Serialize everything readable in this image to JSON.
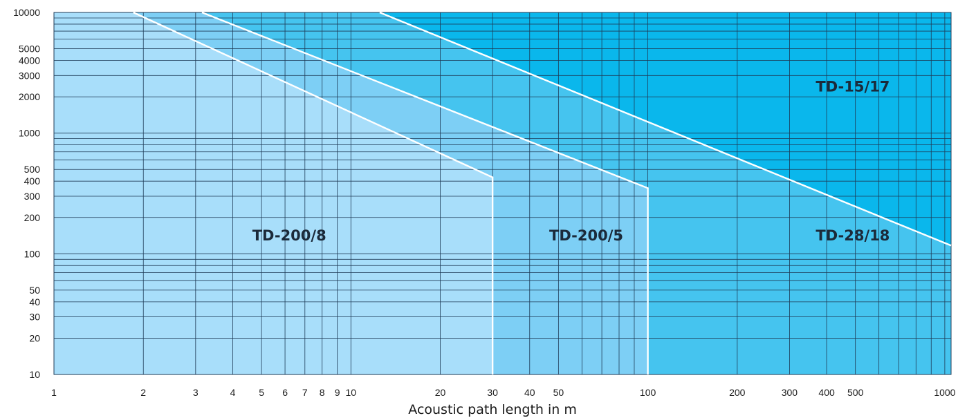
{
  "chart_data": {
    "type": "area",
    "xlabel": "Acoustic path length in m",
    "ylabel": "",
    "x_scale": "log",
    "y_scale": "log",
    "xlim": [
      1,
      1050
    ],
    "ylim": [
      10,
      10000
    ],
    "x_ticks": [
      {
        "v": 1,
        "label": "1"
      },
      {
        "v": 2,
        "label": "2"
      },
      {
        "v": 3,
        "label": "3"
      },
      {
        "v": 4,
        "label": "4"
      },
      {
        "v": 5,
        "label": "5"
      },
      {
        "v": 6,
        "label": "6"
      },
      {
        "v": 7,
        "label": "7"
      },
      {
        "v": 8,
        "label": "8"
      },
      {
        "v": 9,
        "label": "9"
      },
      {
        "v": 10,
        "label": "10"
      },
      {
        "v": 20,
        "label": "20"
      },
      {
        "v": 30,
        "label": "30"
      },
      {
        "v": 40,
        "label": "40"
      },
      {
        "v": 50,
        "label": "50"
      },
      {
        "v": 100,
        "label": "100"
      },
      {
        "v": 200,
        "label": "200"
      },
      {
        "v": 300,
        "label": "300"
      },
      {
        "v": 400,
        "label": "400"
      },
      {
        "v": 500,
        "label": "500"
      },
      {
        "v": 1000,
        "label": "1000"
      }
    ],
    "y_ticks": [
      {
        "v": 10,
        "label": "10"
      },
      {
        "v": 20,
        "label": "20"
      },
      {
        "v": 30,
        "label": "30"
      },
      {
        "v": 40,
        "label": "40"
      },
      {
        "v": 50,
        "label": "50"
      },
      {
        "v": 100,
        "label": "100"
      },
      {
        "v": 200,
        "label": "200"
      },
      {
        "v": 300,
        "label": "300"
      },
      {
        "v": 400,
        "label": "400"
      },
      {
        "v": 500,
        "label": "500"
      },
      {
        "v": 1000,
        "label": "1000"
      },
      {
        "v": 2000,
        "label": "2000"
      },
      {
        "v": 3000,
        "label": "3000"
      },
      {
        "v": 4000,
        "label": "4000"
      },
      {
        "v": 5000,
        "label": "5000"
      },
      {
        "v": 10000,
        "label": "10000"
      }
    ],
    "x_grid": [
      1,
      2,
      3,
      4,
      5,
      6,
      7,
      8,
      9,
      10,
      20,
      30,
      40,
      50,
      60,
      70,
      80,
      90,
      100,
      200,
      300,
      400,
      500,
      600,
      700,
      800,
      900,
      1000
    ],
    "y_grid": [
      10,
      20,
      30,
      40,
      50,
      60,
      70,
      80,
      90,
      100,
      200,
      300,
      400,
      500,
      600,
      700,
      800,
      900,
      1000,
      2000,
      3000,
      4000,
      5000,
      6000,
      7000,
      8000,
      9000,
      10000
    ],
    "grid": true,
    "series": [
      {
        "name": "TD-200/8",
        "color": "#a8defa",
        "boundary": [
          [
            1.85,
            10000
          ],
          [
            30,
            430
          ],
          [
            30,
            10
          ]
        ]
      },
      {
        "name": "TD-200/5",
        "color": "#7dcff5",
        "boundary": [
          [
            3.15,
            10000
          ],
          [
            100,
            350
          ],
          [
            100,
            10
          ]
        ]
      },
      {
        "name": "TD-28/18",
        "color": "#45c4ef",
        "boundary": [
          [
            12.5,
            10000
          ],
          [
            1050,
            117
          ]
        ]
      },
      {
        "name": "TD-15/17",
        "color": "#0ab7ec",
        "boundary": []
      }
    ],
    "annotations": [
      {
        "text": "TD-200/8",
        "x": 6.2,
        "y": 140
      },
      {
        "text": "TD-200/5",
        "x": 62,
        "y": 140
      },
      {
        "text": "TD-28/18",
        "x": 490,
        "y": 140
      },
      {
        "text": "TD-15/17",
        "x": 490,
        "y": 2400
      }
    ]
  }
}
